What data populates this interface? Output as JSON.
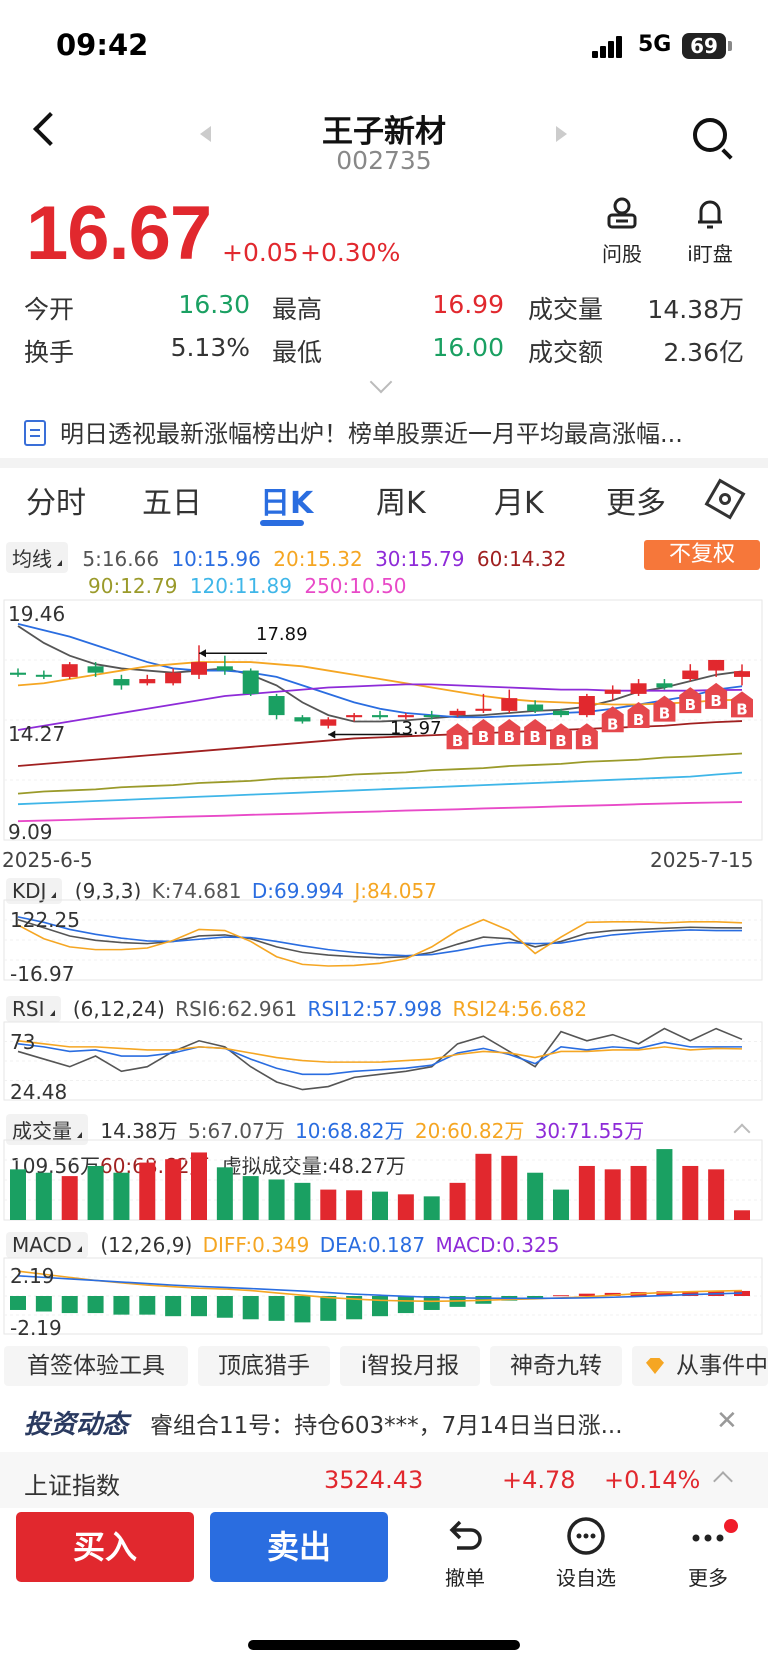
{
  "status": {
    "time": "09:42",
    "network": "5G",
    "battery": "69"
  },
  "header": {
    "name": "王子新材",
    "code": "002735"
  },
  "quote": {
    "price": "16.67",
    "change": "+0.05",
    "change_pct": "+0.30%"
  },
  "tools": [
    {
      "label": "问股",
      "icon": "robot-icon"
    },
    {
      "label": "i盯盘",
      "icon": "bell-icon"
    }
  ],
  "stats": [
    {
      "label": "今开",
      "value": "16.30",
      "color": "green"
    },
    {
      "label": "最高",
      "value": "16.99",
      "color": "red"
    },
    {
      "label": "成交量",
      "value": "14.38万",
      "color": "grey"
    },
    {
      "label": "换手",
      "value": "5.13%",
      "color": "grey"
    },
    {
      "label": "最低",
      "value": "16.00",
      "color": "green"
    },
    {
      "label": "成交额",
      "value": "2.36亿",
      "color": "grey"
    }
  ],
  "news": "明日透视最新涨幅榜出炉！榜单股票近一月平均最高涨幅...",
  "tabs": [
    "分时",
    "五日",
    "日K",
    "周K",
    "月K",
    "更多"
  ],
  "ma": {
    "tag": "均线",
    "v5": "5:16.66",
    "v10": "10:15.96",
    "v20": "20:15.32",
    "v30": "30:15.79",
    "v60": "60:14.32",
    "v90": "90:12.79",
    "v120": "120:11.89",
    "v250": "250:10.50",
    "fq": "不复权"
  },
  "kchart": {
    "ymax": "19.46",
    "ymid": "14.27",
    "ymin": "9.09",
    "date_start": "2025-6-5",
    "date_end": "2025-7-15",
    "hi_label": "17.89",
    "lo_label": "13.97",
    "b_marker": "B"
  },
  "kdj": {
    "tag": "KDJ",
    "params": "(9,3,3)",
    "k": "K:74.681",
    "d": "D:69.994",
    "j": "J:84.057",
    "ymax": "122.25",
    "ymin": "-16.97"
  },
  "rsi": {
    "tag": "RSI",
    "params": "(6,12,24)",
    "r6": "RSI6:62.961",
    "r12": "RSI12:57.998",
    "r24": "RSI24:56.682",
    "ymax": "73",
    "ymin": "24.48"
  },
  "vol": {
    "tag": "成交量",
    "v": "14.38万",
    "m5": "5:67.07万",
    "m10": "10:68.82万",
    "m20": "20:60.82万",
    "m30": "30:71.55万",
    "ymax": "109.56万",
    "m60": "60:68.62万",
    "virtual": "虚拟成交量:48.27万"
  },
  "macd": {
    "tag": "MACD",
    "params": "(12,26,9)",
    "diff": "DIFF:0.349",
    "dea": "DEA:0.187",
    "macd": "MACD:0.325",
    "ymax": "2.19",
    "ymin": "-2.19"
  },
  "chips": [
    "首签体验工具",
    "顶底猎手",
    "i智投月报",
    "神奇九转",
    "从事件中"
  ],
  "invest": {
    "title": "投资动态",
    "text": "睿组合11号：持仓603***，7月14日当日涨..."
  },
  "index": {
    "name": "上证指数",
    "value": "3524.43",
    "change": "+4.78",
    "pct": "+0.14%"
  },
  "trade": {
    "buy": "买入",
    "sell": "卖出"
  },
  "actions": [
    {
      "label": "撤单",
      "icon": "undo-icon"
    },
    {
      "label": "设自选",
      "icon": "chat-icon"
    },
    {
      "label": "更多",
      "icon": "more-icon"
    }
  ],
  "chart_data": {
    "type": "candlestick",
    "x_range": [
      "2025-6-5",
      "2025-7-15"
    ],
    "ylim": [
      9.09,
      19.46
    ],
    "candles": [
      {
        "o": 16.6,
        "c": 16.5,
        "h": 16.8,
        "l": 16.4
      },
      {
        "o": 16.5,
        "c": 16.45,
        "h": 16.7,
        "l": 16.3
      },
      {
        "o": 16.4,
        "c": 17.0,
        "h": 17.1,
        "l": 16.3
      },
      {
        "o": 16.9,
        "c": 16.6,
        "h": 17.1,
        "l": 16.4
      },
      {
        "o": 16.3,
        "c": 16.0,
        "h": 16.5,
        "l": 15.8
      },
      {
        "o": 16.1,
        "c": 16.3,
        "h": 16.5,
        "l": 16.0
      },
      {
        "o": 16.1,
        "c": 16.6,
        "h": 16.8,
        "l": 16.0
      },
      {
        "o": 16.5,
        "c": 17.1,
        "h": 17.89,
        "l": 16.3
      },
      {
        "o": 16.9,
        "c": 16.7,
        "h": 17.4,
        "l": 16.5
      },
      {
        "o": 16.7,
        "c": 15.6,
        "h": 16.8,
        "l": 15.5
      },
      {
        "o": 15.5,
        "c": 14.6,
        "h": 15.6,
        "l": 14.4
      },
      {
        "o": 14.5,
        "c": 14.3,
        "h": 14.6,
        "l": 14.2
      },
      {
        "o": 14.1,
        "c": 14.4,
        "h": 14.5,
        "l": 13.97
      },
      {
        "o": 14.5,
        "c": 14.6,
        "h": 14.7,
        "l": 14.3
      },
      {
        "o": 14.6,
        "c": 14.5,
        "h": 14.8,
        "l": 14.4
      },
      {
        "o": 14.5,
        "c": 14.6,
        "h": 14.7,
        "l": 14.4
      },
      {
        "o": 14.6,
        "c": 14.55,
        "h": 14.8,
        "l": 14.4
      },
      {
        "o": 14.6,
        "c": 14.8,
        "h": 14.9,
        "l": 14.5
      },
      {
        "o": 14.8,
        "c": 14.9,
        "h": 15.6,
        "l": 14.7
      },
      {
        "o": 14.8,
        "c": 15.4,
        "h": 15.8,
        "l": 14.7
      },
      {
        "o": 15.1,
        "c": 14.8,
        "h": 15.3,
        "l": 14.7
      },
      {
        "o": 14.8,
        "c": 14.6,
        "h": 14.9,
        "l": 14.5
      },
      {
        "o": 14.6,
        "c": 15.5,
        "h": 15.6,
        "l": 14.5
      },
      {
        "o": 15.6,
        "c": 15.8,
        "h": 16.0,
        "l": 15.3
      },
      {
        "o": 15.6,
        "c": 16.1,
        "h": 16.3,
        "l": 15.5
      },
      {
        "o": 16.1,
        "c": 15.9,
        "h": 16.3,
        "l": 15.8
      },
      {
        "o": 16.3,
        "c": 16.7,
        "h": 17.0,
        "l": 16.2
      },
      {
        "o": 16.7,
        "c": 17.2,
        "h": 17.2,
        "l": 16.4
      },
      {
        "o": 16.4,
        "c": 16.67,
        "h": 16.99,
        "l": 16.0
      }
    ],
    "b_signals": [
      17,
      18,
      19,
      20,
      21,
      22,
      23,
      24,
      25,
      26,
      27,
      28
    ],
    "series": [
      {
        "name": "5",
        "values": [
          18.8,
          18.0,
          17.4,
          17.0,
          16.8,
          16.7,
          16.6,
          16.7,
          16.8,
          16.5,
          16.0,
          15.2,
          14.6,
          14.3,
          14.3,
          14.35,
          14.45,
          14.55,
          14.6,
          14.7,
          14.8,
          14.85,
          15.0,
          15.3,
          15.7,
          15.9,
          16.2,
          16.5,
          16.66
        ]
      },
      {
        "name": "10",
        "values": [
          18.9,
          18.6,
          18.3,
          17.9,
          17.5,
          17.1,
          16.8,
          16.7,
          16.7,
          16.6,
          16.4,
          16.0,
          15.6,
          15.2,
          14.9,
          14.7,
          14.6,
          14.5,
          14.5,
          14.55,
          14.6,
          14.7,
          14.75,
          14.9,
          15.1,
          15.3,
          15.5,
          15.8,
          15.96
        ]
      },
      {
        "name": "20",
        "values": [
          16.0,
          16.1,
          16.3,
          16.5,
          16.7,
          16.9,
          17.0,
          17.1,
          17.1,
          17.1,
          17.0,
          16.9,
          16.7,
          16.5,
          16.3,
          16.1,
          15.9,
          15.7,
          15.5,
          15.35,
          15.25,
          15.2,
          15.15,
          15.1,
          15.1,
          15.15,
          15.2,
          15.3,
          15.32
        ]
      },
      {
        "name": "30",
        "values": [
          13.9,
          14.1,
          14.3,
          14.5,
          14.7,
          14.9,
          15.1,
          15.3,
          15.5,
          15.6,
          15.7,
          15.8,
          15.9,
          15.95,
          16.0,
          16.05,
          16.05,
          16.0,
          15.95,
          15.9,
          15.85,
          15.8,
          15.8,
          15.75,
          15.75,
          15.75,
          15.75,
          15.78,
          15.79
        ]
      },
      {
        "name": "60",
        "values": [
          12.2,
          12.3,
          12.4,
          12.5,
          12.6,
          12.7,
          12.8,
          12.9,
          13.0,
          13.1,
          13.2,
          13.3,
          13.4,
          13.5,
          13.55,
          13.6,
          13.65,
          13.7,
          13.75,
          13.8,
          13.85,
          13.9,
          13.95,
          14.0,
          14.05,
          14.1,
          14.2,
          14.27,
          14.32
        ]
      },
      {
        "name": "90",
        "values": [
          10.9,
          11.0,
          11.05,
          11.1,
          11.2,
          11.25,
          11.3,
          11.4,
          11.45,
          11.5,
          11.6,
          11.65,
          11.7,
          11.8,
          11.85,
          11.9,
          12.0,
          12.05,
          12.1,
          12.2,
          12.25,
          12.3,
          12.4,
          12.45,
          12.5,
          12.6,
          12.65,
          12.72,
          12.79
        ]
      },
      {
        "name": "120",
        "values": [
          10.4,
          10.45,
          10.5,
          10.55,
          10.6,
          10.65,
          10.7,
          10.75,
          10.8,
          10.85,
          10.9,
          10.95,
          11.0,
          11.05,
          11.1,
          11.15,
          11.2,
          11.25,
          11.3,
          11.35,
          11.4,
          11.45,
          11.5,
          11.55,
          11.6,
          11.65,
          11.7,
          11.8,
          11.89
        ]
      },
      {
        "name": "250",
        "values": [
          9.6,
          9.63,
          9.66,
          9.7,
          9.73,
          9.76,
          9.8,
          9.83,
          9.86,
          9.9,
          9.93,
          9.96,
          10.0,
          10.03,
          10.06,
          10.1,
          10.13,
          10.16,
          10.2,
          10.23,
          10.26,
          10.3,
          10.33,
          10.36,
          10.4,
          10.43,
          10.46,
          10.48,
          10.5
        ]
      }
    ],
    "kdj": {
      "K": [
        90,
        75,
        60,
        52,
        48,
        46,
        50,
        60,
        62,
        55,
        40,
        30,
        25,
        22,
        20,
        22,
        30,
        45,
        58,
        55,
        40,
        50,
        65,
        70,
        72,
        74,
        76,
        75,
        74.681
      ],
      "D": [
        95,
        85,
        72,
        63,
        56,
        51,
        50,
        54,
        58,
        57,
        50,
        42,
        35,
        30,
        26,
        24,
        26,
        33,
        42,
        48,
        46,
        47,
        55,
        62,
        66,
        69,
        71,
        70,
        69.994
      ],
      "J": [
        80,
        55,
        40,
        35,
        35,
        38,
        52,
        72,
        70,
        50,
        22,
        8,
        5,
        6,
        10,
        18,
        40,
        70,
        90,
        70,
        28,
        58,
        85,
        86,
        86,
        84,
        86,
        86,
        84.057
      ]
    },
    "rsi": {
      "RSI6": [
        55,
        50,
        45,
        52,
        42,
        45,
        55,
        62,
        58,
        45,
        35,
        30,
        32,
        38,
        40,
        42,
        45,
        60,
        65,
        55,
        45,
        68,
        62,
        66,
        60,
        70,
        62,
        70,
        62.961
      ],
      "RSI12": [
        60,
        58,
        55,
        56,
        52,
        52,
        54,
        58,
        57,
        50,
        44,
        40,
        40,
        42,
        43,
        44,
        46,
        54,
        57,
        53,
        47,
        58,
        56,
        58,
        57,
        61,
        58,
        58,
        57.998
      ],
      "RSI24": [
        62,
        60,
        58,
        58,
        57,
        56,
        56,
        58,
        57,
        54,
        51,
        49,
        48,
        48,
        48,
        49,
        50,
        53,
        55,
        54,
        51,
        55,
        55,
        56,
        56,
        58,
        56,
        57,
        56.682
      ]
    },
    "volume": [
      75,
      70,
      65,
      80,
      70,
      85,
      90,
      100,
      78,
      65,
      60,
      55,
      45,
      44,
      42,
      38,
      35,
      55,
      98,
      95,
      70,
      45,
      80,
      75,
      80,
      105,
      80,
      75,
      14.38
    ],
    "macd": {
      "DIFF": [
        1.6,
        1.4,
        1.2,
        1.0,
        0.85,
        0.7,
        0.6,
        0.5,
        0.45,
        0.35,
        0.2,
        0.05,
        -0.1,
        -0.2,
        -0.28,
        -0.32,
        -0.34,
        -0.32,
        -0.28,
        -0.22,
        -0.18,
        -0.12,
        -0.05,
        0.05,
        0.15,
        0.22,
        0.28,
        0.32,
        0.349
      ],
      "DEA": [
        1.3,
        1.2,
        1.1,
        1.0,
        0.9,
        0.8,
        0.7,
        0.62,
        0.55,
        0.48,
        0.4,
        0.32,
        0.22,
        0.12,
        0.05,
        -0.02,
        -0.08,
        -0.12,
        -0.14,
        -0.15,
        -0.15,
        -0.14,
        -0.12,
        -0.08,
        -0.03,
        0.03,
        0.09,
        0.14,
        0.187
      ],
      "MACD": [
        -0.9,
        -1.0,
        -1.1,
        -1.1,
        -1.2,
        -1.2,
        -1.3,
        -1.3,
        -1.4,
        -1.5,
        -1.6,
        -1.7,
        -1.6,
        -1.5,
        -1.3,
        -1.1,
        -0.9,
        -0.7,
        -0.5,
        -0.3,
        -0.1,
        0.05,
        0.15,
        0.2,
        0.25,
        0.3,
        0.3,
        0.32,
        0.325
      ]
    }
  },
  "colors": {
    "up": "#e1282e",
    "down": "#1aa062",
    "accent": "#2a6de0",
    "ma5": "#555555",
    "ma10": "#2a6de0",
    "ma20": "#f5a623",
    "ma30": "#8e2bd8",
    "ma60": "#a02020",
    "ma90": "#9a9a2a",
    "ma120": "#3fb6e8",
    "ma250": "#e84ac8"
  }
}
